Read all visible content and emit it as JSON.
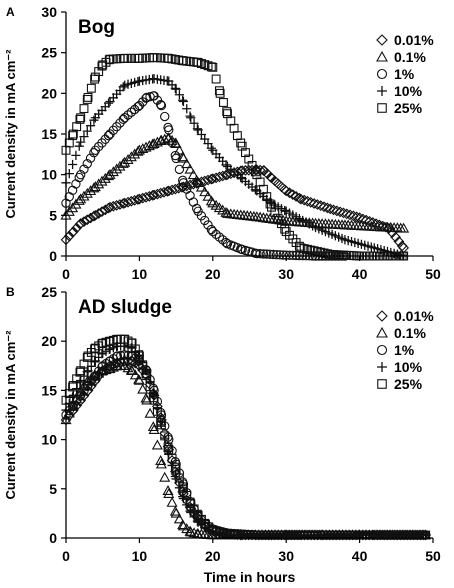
{
  "chart_data": [
    {
      "type": "scatter",
      "panel_letter": "A",
      "title": "Bog",
      "ylabel": "Current density in mA cm⁻²",
      "xlabel": "",
      "xlim": [
        0,
        50
      ],
      "ylim": [
        0,
        30
      ],
      "x_ticks": [
        "0",
        "10",
        "20",
        "30",
        "40",
        "50"
      ],
      "y_ticks": [
        "0",
        "5",
        "10",
        "15",
        "20",
        "25",
        "30"
      ],
      "legend_position": "top-right",
      "series": [
        {
          "name": "0.01%",
          "marker": "diamond",
          "x": [
            0,
            1,
            2,
            4,
            6,
            8,
            10,
            12,
            14,
            16,
            18,
            20,
            22,
            24,
            26,
            27,
            28,
            30,
            32,
            36,
            40,
            44,
            46
          ],
          "y": [
            2,
            3,
            4,
            5,
            6,
            6.5,
            7,
            7.5,
            8,
            8.5,
            9,
            9.5,
            10,
            10.5,
            10.6,
            10.5,
            9.6,
            8,
            7,
            5.8,
            4.7,
            3.4,
            1
          ]
        },
        {
          "name": "0.1%",
          "marker": "triangle",
          "x": [
            0,
            2,
            4,
            6,
            8,
            10,
            12,
            13,
            14,
            15,
            16,
            18,
            20,
            22,
            26,
            30,
            34,
            38,
            42,
            46
          ],
          "y": [
            5,
            7,
            8.5,
            10,
            11.5,
            13,
            13.8,
            14.2,
            14.5,
            13.8,
            12,
            9,
            6.5,
            5.2,
            4.8,
            4.3,
            4,
            3.8,
            3.6,
            3.4
          ]
        },
        {
          "name": "1%",
          "marker": "circle",
          "x": [
            0,
            2,
            4,
            6,
            8,
            10,
            11,
            12,
            13,
            14,
            15,
            16,
            18,
            20,
            22,
            24,
            26,
            30,
            34,
            38
          ],
          "y": [
            6.5,
            10,
            13,
            15,
            17,
            18.5,
            19.5,
            19.7,
            18.5,
            15.5,
            12,
            9,
            5.5,
            3,
            1.5,
            0.8,
            0.3,
            0.1,
            0,
            0
          ]
        },
        {
          "name": "10%",
          "marker": "plus",
          "x": [
            0,
            2,
            4,
            6,
            8,
            10,
            12,
            14,
            15,
            16,
            17,
            18,
            20,
            22,
            24,
            26,
            28,
            30,
            34,
            38,
            42,
            46
          ],
          "y": [
            9,
            14,
            17,
            19,
            21,
            21.5,
            21.8,
            21.5,
            20.5,
            19,
            17,
            15.5,
            13,
            11,
            9.5,
            8,
            6.5,
            5.5,
            3.5,
            2,
            1,
            0
          ]
        },
        {
          "name": "25%",
          "marker": "square",
          "x": [
            0,
            1,
            2,
            3,
            4,
            5,
            6,
            8,
            10,
            12,
            14,
            16,
            18,
            20,
            21,
            22,
            24,
            26,
            28,
            30,
            32,
            36,
            40,
            44,
            46
          ],
          "y": [
            13,
            15,
            17,
            19.5,
            22,
            23.5,
            24.2,
            24.3,
            24.3,
            24.4,
            24.3,
            24,
            23.8,
            23.2,
            20,
            17.5,
            13.5,
            10,
            6,
            3,
            1,
            0.2,
            0,
            0,
            0
          ]
        }
      ]
    },
    {
      "type": "scatter",
      "panel_letter": "B",
      "title": "AD sludge",
      "ylabel": "Current density in mA cm⁻²",
      "xlabel": "Time in hours",
      "xlim": [
        0,
        50
      ],
      "ylim": [
        0,
        25
      ],
      "x_ticks": [
        "0",
        "10",
        "20",
        "30",
        "40",
        "50"
      ],
      "y_ticks": [
        "0",
        "5",
        "10",
        "15",
        "20",
        "25"
      ],
      "legend_position": "top-right",
      "series": [
        {
          "name": "0.01%",
          "marker": "diamond",
          "x": [
            0,
            1,
            2,
            3,
            4,
            5,
            6,
            7,
            8,
            9,
            10,
            11,
            12,
            13,
            14,
            15,
            16,
            17,
            18,
            19,
            20,
            22,
            24,
            28,
            35,
            42,
            49
          ],
          "y": [
            12,
            13,
            14,
            15,
            16,
            17,
            17.5,
            17.8,
            18,
            18,
            17.5,
            16.5,
            14.5,
            12,
            9,
            6.5,
            4.5,
            3,
            2,
            1.2,
            0.8,
            0.4,
            0.3,
            0.3,
            0.3,
            0.3,
            0.3
          ]
        },
        {
          "name": "0.1%",
          "marker": "triangle",
          "x": [
            0,
            1,
            2,
            3,
            4,
            5,
            6,
            7,
            8,
            9,
            10,
            11,
            12,
            13,
            14,
            15,
            16,
            17,
            18,
            20,
            24,
            30,
            40,
            49
          ],
          "y": [
            12,
            13.5,
            15,
            16,
            16.5,
            17,
            17.2,
            17.5,
            17.5,
            17,
            16,
            14,
            11,
            7.5,
            4.5,
            2.5,
            1.2,
            0.6,
            0.4,
            0.3,
            0.3,
            0.3,
            0.3,
            0.3
          ]
        },
        {
          "name": "1%",
          "marker": "circle",
          "x": [
            0,
            1,
            2,
            3,
            4,
            5,
            6,
            7,
            8,
            9,
            10,
            11,
            12,
            13,
            14,
            15,
            16,
            17,
            18,
            19,
            20,
            22,
            26,
            32,
            40,
            49
          ],
          "y": [
            12.5,
            13.5,
            14.5,
            15.5,
            16.5,
            17.5,
            18,
            18.5,
            18.6,
            18.5,
            18,
            17,
            15,
            12.5,
            10,
            7.5,
            5.5,
            3.5,
            2.2,
            1.4,
            0.9,
            0.5,
            0.3,
            0.3,
            0.3,
            0.3
          ]
        },
        {
          "name": "10%",
          "marker": "plus",
          "x": [
            0,
            1,
            2,
            3,
            4,
            5,
            6,
            7,
            8,
            9,
            10,
            11,
            12,
            13,
            14,
            15,
            16,
            17,
            18,
            19,
            20,
            22,
            26,
            32,
            40,
            49
          ],
          "y": [
            13,
            14.5,
            16,
            17,
            18,
            18.8,
            19.2,
            19.5,
            19.5,
            19.3,
            18.5,
            17,
            14.5,
            11.5,
            8.5,
            6,
            4,
            2.6,
            1.6,
            1,
            0.7,
            0.4,
            0.3,
            0.3,
            0.3,
            0.3
          ]
        },
        {
          "name": "25%",
          "marker": "square",
          "x": [
            0,
            1,
            2,
            3,
            4,
            5,
            6,
            7,
            8,
            9,
            10,
            11,
            12,
            13,
            14,
            15,
            16,
            17,
            18,
            19,
            20,
            22,
            26,
            32,
            40,
            49
          ],
          "y": [
            14,
            15.5,
            17,
            18.5,
            19.3,
            19.8,
            20,
            20.2,
            20.2,
            19.8,
            18.5,
            16.5,
            14,
            11.5,
            9,
            7,
            5,
            3.5,
            2.3,
            1.4,
            0.8,
            0.4,
            0.3,
            0.3,
            0.3,
            0.3
          ]
        }
      ]
    }
  ]
}
